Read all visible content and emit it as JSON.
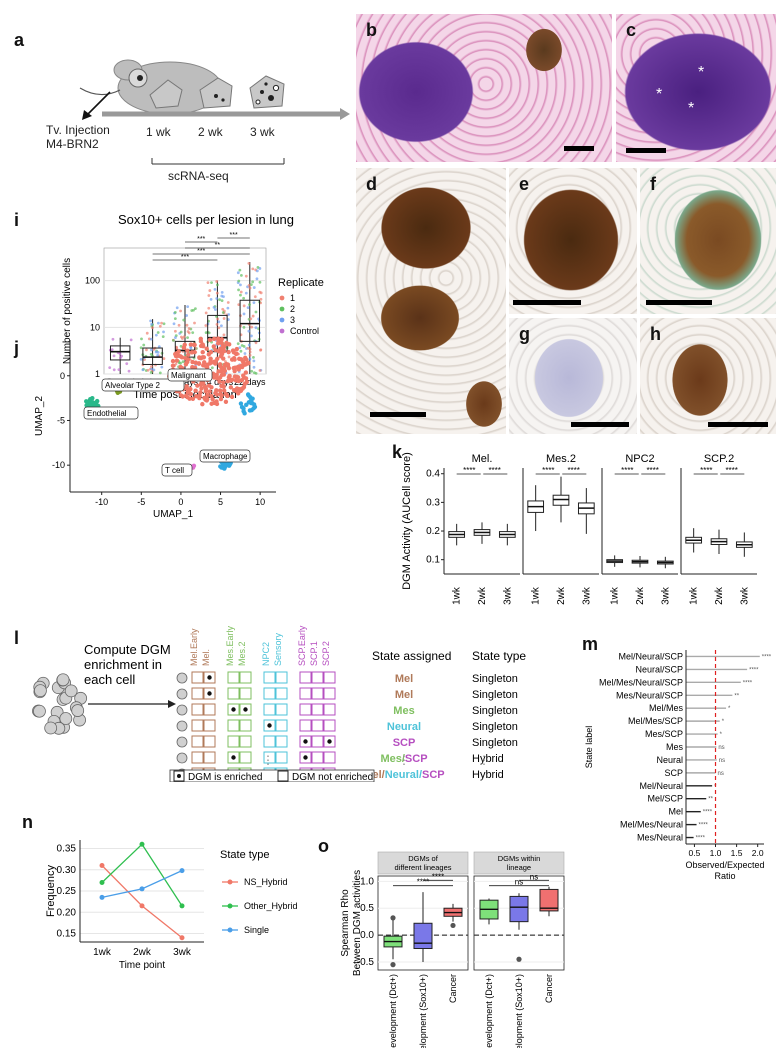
{
  "panels": {
    "a": {
      "label": "a",
      "injection_line1": "Tv. Injection",
      "injection_line2": "M4-BRN2",
      "timepoints": [
        "1 wk",
        "2 wk",
        "3 wk"
      ],
      "method": "scRNA-seq"
    },
    "micro": {
      "labels": [
        "b",
        "c",
        "d",
        "e",
        "f",
        "g",
        "h"
      ],
      "asterisk": "*"
    },
    "i": {
      "label": "i",
      "sig": [
        "***",
        "**",
        "***",
        "***",
        "***"
      ]
    },
    "j": {
      "label": "j",
      "clusters": [
        "Alveolar Type 2",
        "Malignant",
        "Endothelial",
        "T cell",
        "Macrophage"
      ]
    },
    "k": {
      "label": "k",
      "facets": [
        "Mel.",
        "Mes.2",
        "NPC2",
        "SCP.2"
      ],
      "sig": "****"
    },
    "l": {
      "label": "l",
      "compute_text": [
        "Compute DGM",
        "enrichment in",
        "each cell"
      ],
      "columns": [
        "Mel.Early",
        "Mel.",
        "Mes.Early",
        "Mes.2",
        "NPC2",
        "Sensory",
        "SCP.Early",
        "SCP.1",
        "SCP.2"
      ],
      "state_assigned_header": "State assigned",
      "state_type_header": "State type",
      "rows": [
        {
          "assigned": "Mel",
          "type": "Singleton"
        },
        {
          "assigned": "Mel",
          "type": "Singleton"
        },
        {
          "assigned": "Mes",
          "type": "Singleton"
        },
        {
          "assigned": "Neural",
          "type": "Singleton"
        },
        {
          "assigned": "SCP",
          "type": "Singleton"
        },
        {
          "assigned": "Mes/SCP",
          "type": "Hybrid"
        },
        {
          "assigned": "Mel/Neural/SCP",
          "type": "Hybrid"
        }
      ],
      "dots": "⋮",
      "legend_enriched": "DGM is enriched",
      "legend_not": "DGM not enriched",
      "colors": {
        "Mel": "#b07a5a",
        "Mes": "#7fbf60",
        "Neural": "#4ec3d9",
        "SCP": "#b64fc0"
      }
    },
    "m": {
      "label": "m",
      "sig": [
        "****",
        "****",
        "****",
        "**",
        "*",
        "*",
        "*",
        "ns",
        "ns",
        "ns",
        "*",
        "**",
        "****",
        "****",
        "****"
      ]
    },
    "n": {
      "label": "n",
      "legend_title": "State type"
    },
    "o": {
      "label": "o",
      "facet_left": [
        "DGMs of",
        "different lineages"
      ],
      "facet_right": [
        "DGMs within",
        "lineage"
      ],
      "sig": [
        "****",
        "****",
        "ns",
        "ns"
      ]
    }
  },
  "chart_data": [
    {
      "panel": "i",
      "type": "box",
      "title": "Sox10+ cells per lesion in lung",
      "xlabel": "Time post inoculation",
      "ylabel": "Number of positive cells",
      "categories": [
        "Control",
        "4 days",
        "7 days",
        "14 days",
        "22 days"
      ],
      "y_scale": "log",
      "ylim": [
        1,
        500
      ],
      "y_ticks": [
        "1",
        "10",
        "100"
      ],
      "boxes": [
        {
          "q1": 2,
          "median": 3,
          "q3": 4,
          "min": 1,
          "max": 6
        },
        {
          "q1": 1.6,
          "median": 2.3,
          "q3": 3.6,
          "min": 1,
          "max": 15
        },
        {
          "q1": 2.3,
          "median": 3.2,
          "q3": 5,
          "min": 1,
          "max": 30
        },
        {
          "q1": 3,
          "median": 6,
          "q3": 18,
          "min": 1,
          "max": 100
        },
        {
          "q1": 5,
          "median": 12,
          "q3": 38,
          "min": 1,
          "max": 250
        }
      ],
      "legend_title": "Replicate",
      "legend": [
        "1",
        "2",
        "3",
        "Control"
      ],
      "colors": [
        "#f08070",
        "#5fbf5f",
        "#70a0f0",
        "#c070d0"
      ]
    },
    {
      "panel": "j",
      "type": "scatter",
      "xlabel": "UMAP_1",
      "ylabel": "UMAP_2",
      "x_ticks": [
        -10,
        -5,
        0,
        5,
        10
      ],
      "y_ticks": [
        0,
        -5,
        -10
      ],
      "xlim": [
        -14,
        12
      ],
      "ylim": [
        -13,
        4
      ],
      "clusters": [
        {
          "name": "Malignant",
          "color": "#f07868"
        },
        {
          "name": "Endothelial",
          "color": "#2ab88a"
        },
        {
          "name": "Alveolar Type 2",
          "color": "#7a9a20"
        },
        {
          "name": "T cell",
          "color": "#e070d0"
        },
        {
          "name": "Macrophage",
          "color": "#30a8e0"
        }
      ]
    },
    {
      "panel": "k",
      "type": "box",
      "ylabel": "DGM Activity (AUCell score)",
      "y_ticks": [
        "0.1",
        "0.2",
        "0.3",
        "0.4"
      ],
      "ylim": [
        0.05,
        0.42
      ],
      "categories": [
        "1wk",
        "2wk",
        "3wk"
      ],
      "facets": [
        {
          "name": "Mel.",
          "boxes": [
            {
              "q1": 0.178,
              "median": 0.188,
              "q3": 0.198,
              "min": 0.15,
              "max": 0.225
            },
            {
              "q1": 0.185,
              "median": 0.195,
              "q3": 0.205,
              "min": 0.155,
              "max": 0.23
            },
            {
              "q1": 0.178,
              "median": 0.188,
              "q3": 0.198,
              "min": 0.15,
              "max": 0.225
            }
          ]
        },
        {
          "name": "Mes.2",
          "boxes": [
            {
              "q1": 0.265,
              "median": 0.285,
              "q3": 0.305,
              "min": 0.2,
              "max": 0.36
            },
            {
              "q1": 0.29,
              "median": 0.31,
              "q3": 0.325,
              "min": 0.23,
              "max": 0.39
            },
            {
              "q1": 0.26,
              "median": 0.28,
              "q3": 0.298,
              "min": 0.19,
              "max": 0.35
            }
          ]
        },
        {
          "name": "NPC2",
          "boxes": [
            {
              "q1": 0.09,
              "median": 0.095,
              "q3": 0.1,
              "min": 0.075,
              "max": 0.115
            },
            {
              "q1": 0.088,
              "median": 0.093,
              "q3": 0.098,
              "min": 0.073,
              "max": 0.113
            },
            {
              "q1": 0.085,
              "median": 0.09,
              "q3": 0.095,
              "min": 0.07,
              "max": 0.11
            }
          ]
        },
        {
          "name": "SCP.2",
          "boxes": [
            {
              "q1": 0.158,
              "median": 0.168,
              "q3": 0.178,
              "min": 0.125,
              "max": 0.21
            },
            {
              "q1": 0.153,
              "median": 0.163,
              "q3": 0.173,
              "min": 0.12,
              "max": 0.205
            },
            {
              "q1": 0.143,
              "median": 0.152,
              "q3": 0.162,
              "min": 0.11,
              "max": 0.195
            }
          ]
        }
      ]
    },
    {
      "panel": "m",
      "type": "lollipop",
      "ylabel": "State label",
      "xlabel_lines": [
        "Observed/Expected",
        "Ratio"
      ],
      "x_ticks": [
        "0.5",
        "1.0",
        "1.5",
        "2.0"
      ],
      "xlim": [
        0.3,
        2.15
      ],
      "reference": 1.0,
      "categories": [
        "Mel/Neural/SCP",
        "Neural/SCP",
        "Mel/Mes/Neural/SCP",
        "Mes/Neural/SCP",
        "Mel/Mes",
        "Mel/Mes/SCP",
        "Mes/SCP",
        "Mes",
        "Neural",
        "SCP",
        "Mel/Neural",
        "Mel/SCP",
        "Mel",
        "Mel/Mes/Neural",
        "Mes/Neural"
      ],
      "values": [
        2.05,
        1.75,
        1.6,
        1.4,
        1.25,
        1.1,
        1.05,
        1.02,
        1.03,
        1.0,
        0.92,
        0.78,
        0.65,
        0.55,
        0.48
      ]
    },
    {
      "panel": "n",
      "type": "line",
      "xlabel": "Time point",
      "ylabel": "Frequency",
      "categories": [
        "1wk",
        "2wk",
        "3wk"
      ],
      "y_ticks": [
        "0.15",
        "0.20",
        "0.25",
        "0.30",
        "0.35"
      ],
      "ylim": [
        0.13,
        0.37
      ],
      "series": [
        {
          "name": "NS_Hybrid",
          "color": "#f07868",
          "values": [
            0.31,
            0.215,
            0.14
          ]
        },
        {
          "name": "Other_Hybrid",
          "color": "#2fbf4f",
          "values": [
            0.27,
            0.36,
            0.215
          ]
        },
        {
          "name": "Single",
          "color": "#4a9ee8",
          "values": [
            0.235,
            0.255,
            0.298
          ]
        }
      ]
    },
    {
      "panel": "o",
      "type": "box",
      "ylabel": "Spearman Rho Between DGM activities",
      "y_ticks": [
        "-0.5",
        "0.0",
        "0.5",
        "1.0"
      ],
      "ylim": [
        -0.65,
        1.1
      ],
      "groups": [
        {
          "facet": "left",
          "categories": [
            "Development (Dct+)",
            "Development (Sox10+)",
            "Cancer"
          ],
          "colors": [
            "#7ee07a",
            "#7a78e8",
            "#f07070"
          ],
          "boxes": [
            {
              "q1": -0.22,
              "median": -0.12,
              "q3": -0.02,
              "min": -0.45,
              "max": 0.3
            },
            {
              "q1": -0.25,
              "median": -0.15,
              "q3": 0.22,
              "min": -0.5,
              "max": 0.8
            },
            {
              "q1": 0.35,
              "median": 0.42,
              "q3": 0.5,
              "min": 0.25,
              "max": 0.58
            }
          ],
          "outliers": [
            [
              0,
              -0.55
            ],
            [
              0,
              0.32
            ],
            [
              2,
              0.18
            ]
          ]
        },
        {
          "facet": "right",
          "categories": [
            "Development (Dct+)",
            "Development (Sox10+)",
            "Cancer"
          ],
          "colors": [
            "#7ee07a",
            "#7a78e8",
            "#f07070"
          ],
          "boxes": [
            {
              "q1": 0.3,
              "median": 0.48,
              "q3": 0.65,
              "min": 0.2,
              "max": 0.68
            },
            {
              "q1": 0.25,
              "median": 0.52,
              "q3": 0.72,
              "min": 0.1,
              "max": 0.78
            },
            {
              "q1": 0.45,
              "median": 0.5,
              "q3": 0.85,
              "min": 0.35,
              "max": 0.9
            }
          ],
          "outliers": [
            [
              1,
              -0.45
            ]
          ]
        }
      ]
    }
  ]
}
